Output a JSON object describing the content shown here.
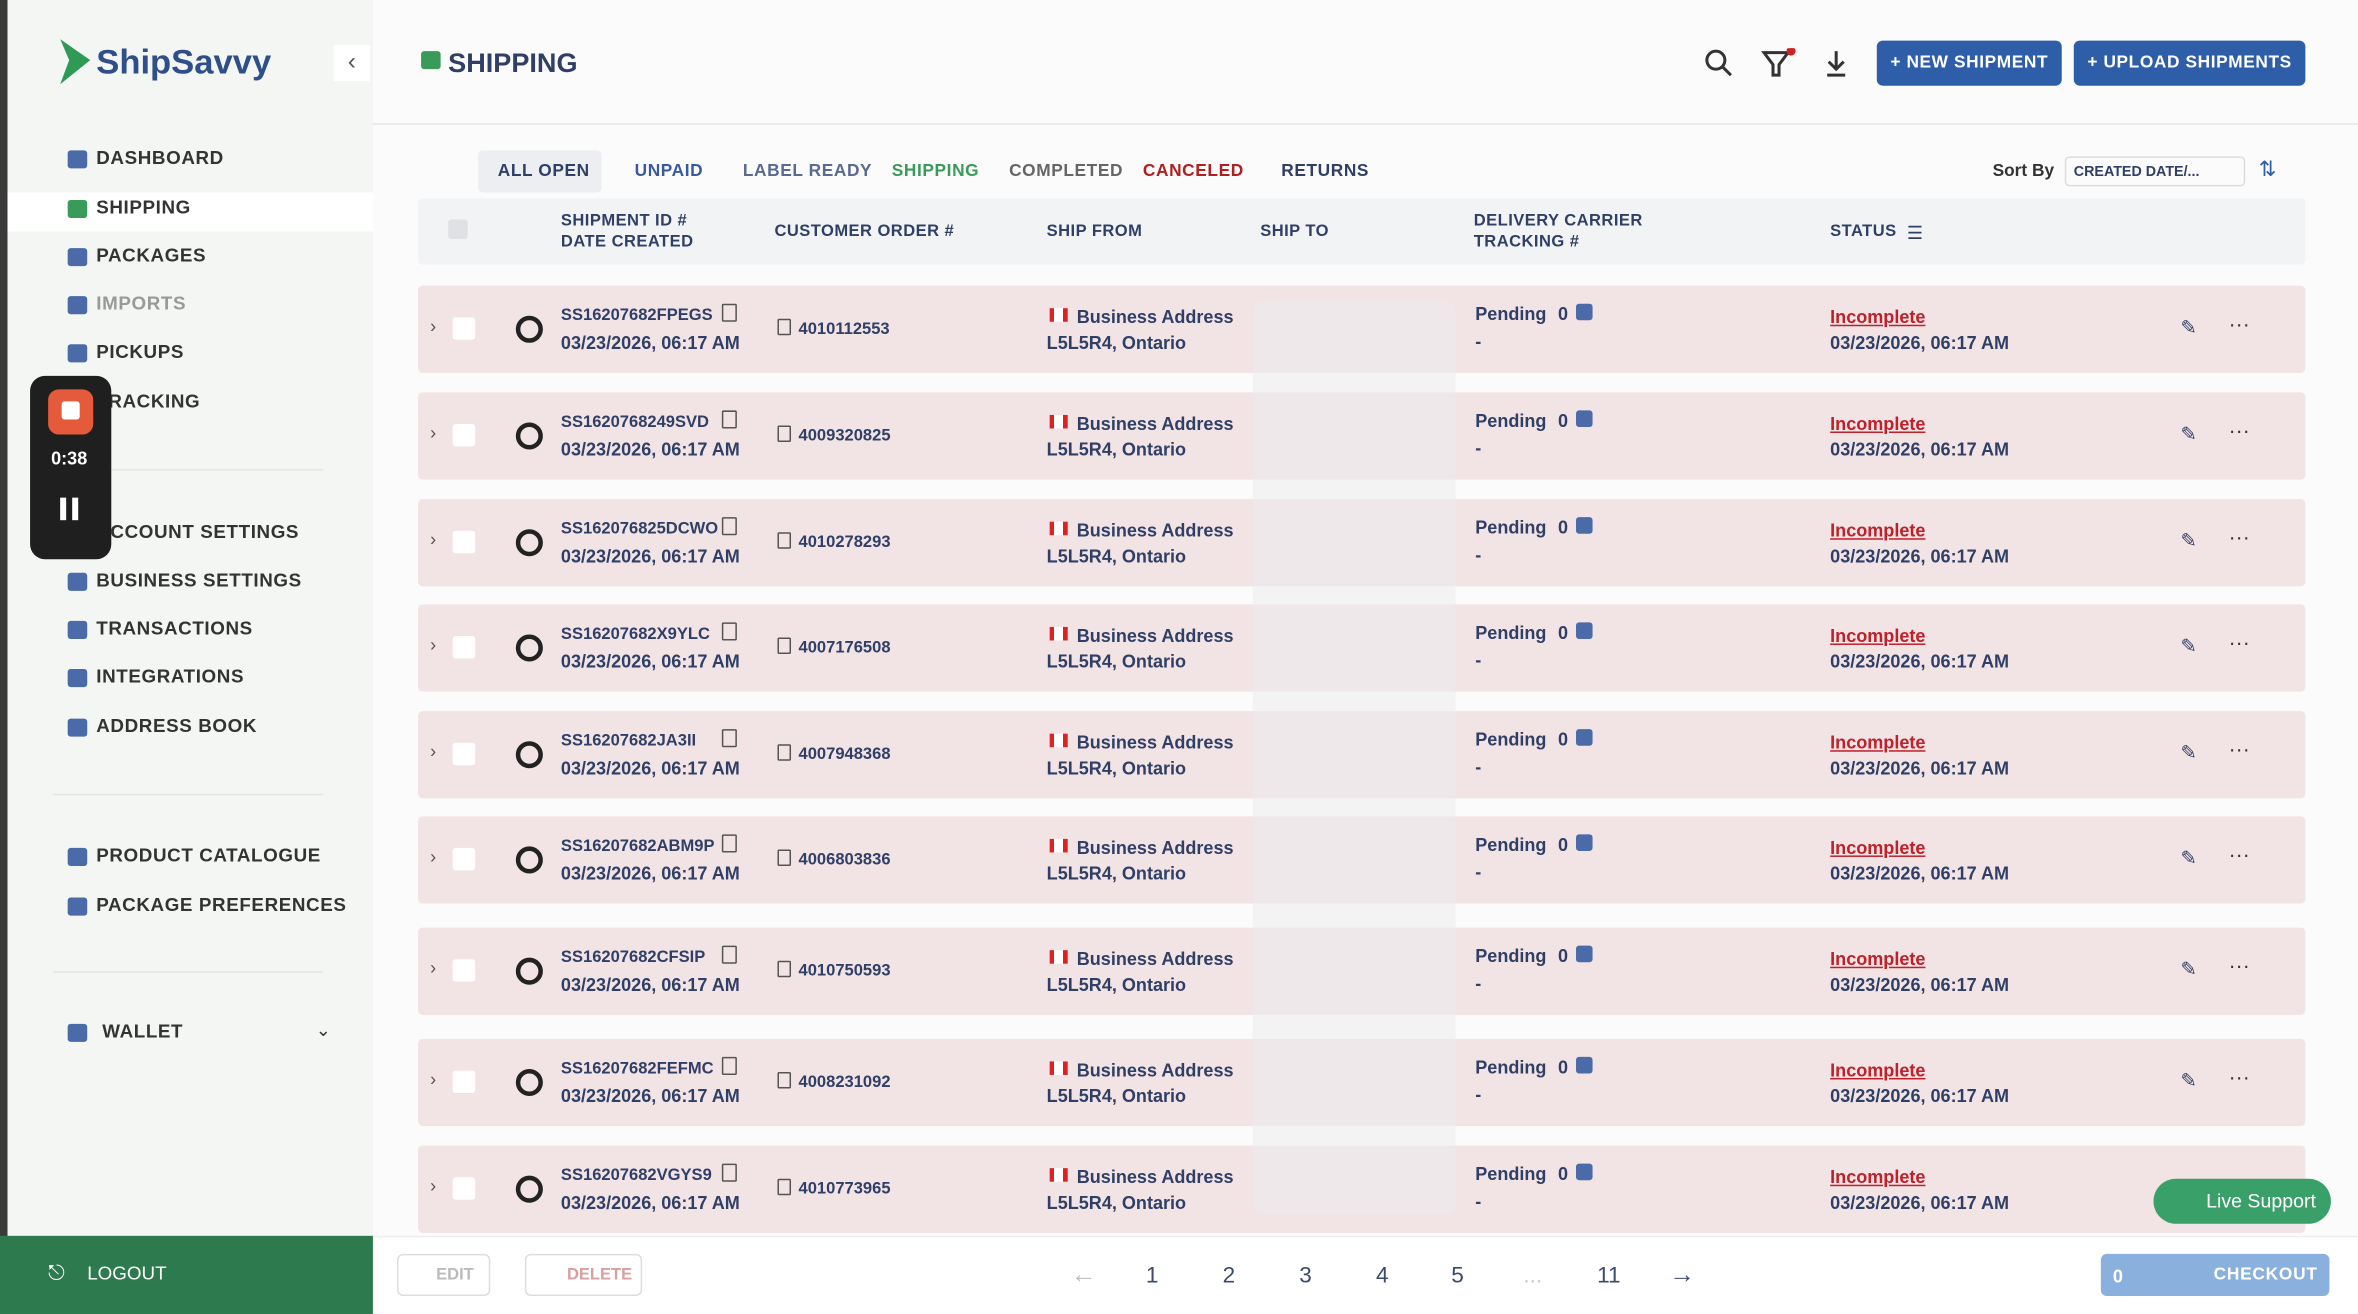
{
  "sidebar": {
    "logo": "ShipSavvy",
    "nav": [
      "DASHBOARD",
      "SHIPPING",
      "PACKAGES",
      "IMPORTS",
      "PICKUPS",
      "TRACKING"
    ],
    "settings": [
      "ACCOUNT SETTINGS",
      "BUSINESS SETTINGS",
      "TRANSACTIONS",
      "INTEGRATIONS",
      "ADDRESS BOOK"
    ],
    "catalog": [
      "PRODUCT CATALOGUE",
      "PACKAGE PREFERENCES"
    ],
    "wallet": "WALLET",
    "logout": "LOGOUT",
    "recorder_time": "0:38"
  },
  "header": {
    "title": "SHIPPING",
    "new_shipment": "+ NEW SHIPMENT",
    "upload_shipments": "+ UPLOAD SHIPMENTS"
  },
  "tabs": [
    "ALL OPEN",
    "UNPAID",
    "LABEL READY",
    "SHIPPING",
    "COMPLETED",
    "CANCELED",
    "RETURNS"
  ],
  "sort": {
    "label": "Sort By",
    "value": "CREATED DATE/..."
  },
  "columns": {
    "id": "SHIPMENT ID #",
    "date": "DATE CREATED",
    "order": "CUSTOMER ORDER #",
    "from": "SHIP FROM",
    "to": "SHIP TO",
    "carrier": "DELIVERY CARRIER",
    "tracking": "TRACKING #",
    "status": "STATUS"
  },
  "rows": [
    {
      "id": "SS16207682FPEGS",
      "date": "03/23/2026, 06:17 AM",
      "order": "4010112553",
      "from": "Business Address",
      "from_line2": "L5L5R4, Ontario",
      "carrier": "Pending",
      "count": "0",
      "tracking": "-",
      "status": "Incomplete",
      "status_date": "03/23/2026, 06:17 AM"
    },
    {
      "id": "SS1620768249SVD",
      "date": "03/23/2026, 06:17 AM",
      "order": "4009320825",
      "from": "Business Address",
      "from_line2": "L5L5R4, Ontario",
      "carrier": "Pending",
      "count": "0",
      "tracking": "-",
      "status": "Incomplete",
      "status_date": "03/23/2026, 06:17 AM"
    },
    {
      "id": "SS162076825DCWO",
      "date": "03/23/2026, 06:17 AM",
      "order": "4010278293",
      "from": "Business Address",
      "from_line2": "L5L5R4, Ontario",
      "carrier": "Pending",
      "count": "0",
      "tracking": "-",
      "status": "Incomplete",
      "status_date": "03/23/2026, 06:17 AM"
    },
    {
      "id": "SS16207682X9YLC",
      "date": "03/23/2026, 06:17 AM",
      "order": "4007176508",
      "from": "Business Address",
      "from_line2": "L5L5R4, Ontario",
      "carrier": "Pending",
      "count": "0",
      "tracking": "-",
      "status": "Incomplete",
      "status_date": "03/23/2026, 06:17 AM"
    },
    {
      "id": "SS16207682JA3II",
      "date": "03/23/2026, 06:17 AM",
      "order": "4007948368",
      "from": "Business Address",
      "from_line2": "L5L5R4, Ontario",
      "carrier": "Pending",
      "count": "0",
      "tracking": "-",
      "status": "Incomplete",
      "status_date": "03/23/2026, 06:17 AM"
    },
    {
      "id": "SS16207682ABM9P",
      "date": "03/23/2026, 06:17 AM",
      "order": "4006803836",
      "from": "Business Address",
      "from_line2": "L5L5R4, Ontario",
      "carrier": "Pending",
      "count": "0",
      "tracking": "-",
      "status": "Incomplete",
      "status_date": "03/23/2026, 06:17 AM"
    },
    {
      "id": "SS16207682CFSIP",
      "date": "03/23/2026, 06:17 AM",
      "order": "4010750593",
      "from": "Business Address",
      "from_line2": "L5L5R4, Ontario",
      "carrier": "Pending",
      "count": "0",
      "tracking": "-",
      "status": "Incomplete",
      "status_date": "03/23/2026, 06:17 AM"
    },
    {
      "id": "SS16207682FEFMC",
      "date": "03/23/2026, 06:17 AM",
      "order": "4008231092",
      "from": "Business Address",
      "from_line2": "L5L5R4, Ontario",
      "carrier": "Pending",
      "count": "0",
      "tracking": "-",
      "status": "Incomplete",
      "status_date": "03/23/2026, 06:17 AM"
    },
    {
      "id": "SS16207682VGYS9",
      "date": "03/23/2026, 06:17 AM",
      "order": "4010773965",
      "from": "Business Address",
      "from_line2": "L5L5R4, Ontario",
      "carrier": "Pending",
      "count": "0",
      "tracking": "-",
      "status": "Incomplete",
      "status_date": "03/23/2026, 06:17 AM"
    }
  ],
  "footer": {
    "edit": "EDIT",
    "delete": "DELETE",
    "pages": [
      "1",
      "2",
      "3",
      "4",
      "5",
      "...",
      "11"
    ],
    "cart_count": "0",
    "checkout": "CHECKOUT",
    "live_support": "Live Support"
  }
}
